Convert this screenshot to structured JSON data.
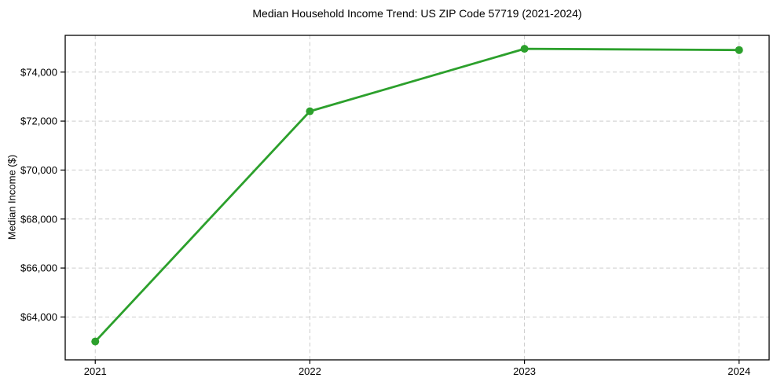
{
  "figure": {
    "background": "#ffffff"
  },
  "chart_data": {
    "type": "line",
    "title": "Median Household Income Trend: US ZIP Code 57719 (2021-2024)",
    "xlabel": "",
    "ylabel": "Median Income ($)",
    "x": [
      2021,
      2022,
      2023,
      2024
    ],
    "xtick_labels": [
      "2021",
      "2022",
      "2023",
      "2024"
    ],
    "series": [
      {
        "name": "median-household-income",
        "values": [
          63000,
          72400,
          74950,
          74900
        ],
        "color": "#2ca02c",
        "marker": "circle",
        "marker_radius": 5,
        "line_width": 2.8
      }
    ],
    "yticks": [
      64000,
      66000,
      68000,
      70000,
      72000,
      74000
    ],
    "ytick_labels": [
      "$64,000",
      "$66,000",
      "$68,000",
      "$70,000",
      "$72,000",
      "$74,000"
    ],
    "ylim": [
      62250,
      75500
    ],
    "xlim": [
      2020.86,
      2024.14
    ],
    "grid": true,
    "grid_style": "dashed",
    "grid_color": "#cccccc",
    "spine_color": "#000000",
    "tick_color": "#000000",
    "text_color": "#000000",
    "legend": "none"
  }
}
